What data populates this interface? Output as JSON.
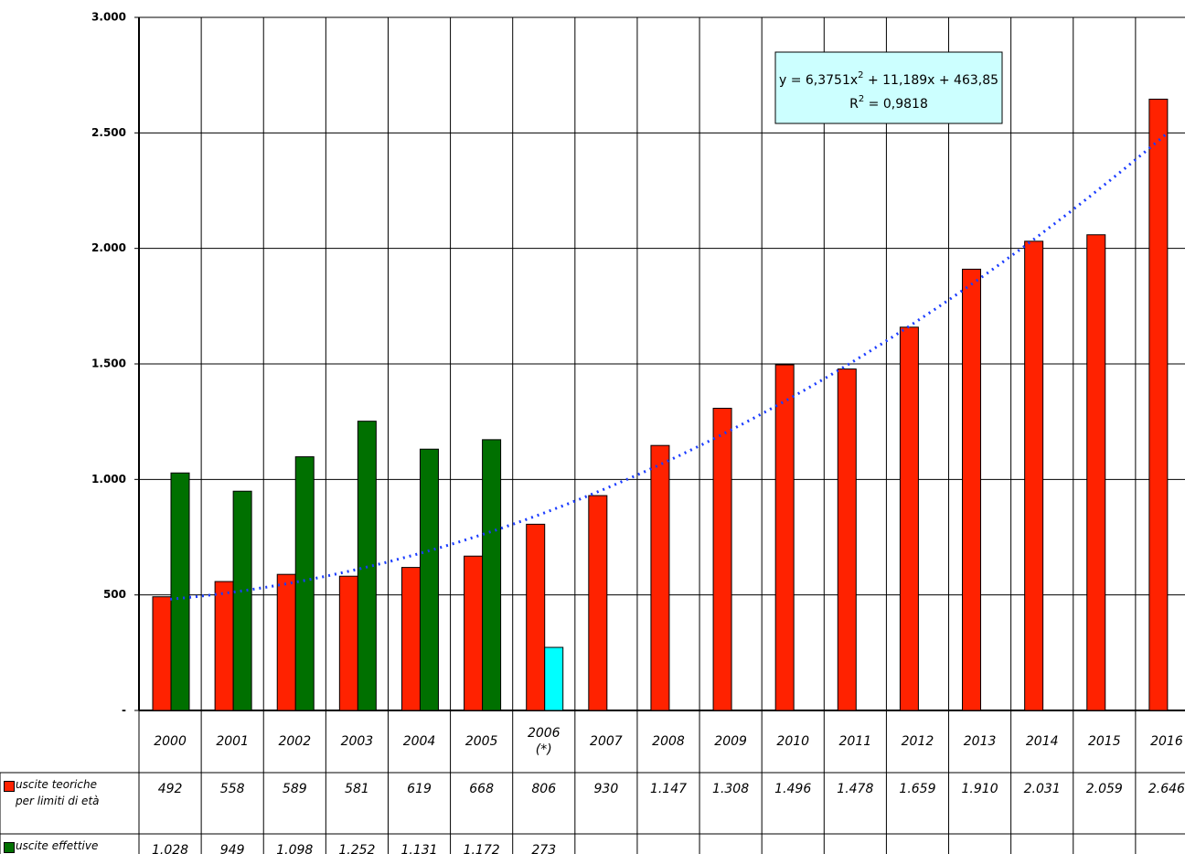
{
  "chart_data": {
    "type": "bar",
    "categories": [
      "2000",
      "2001",
      "2002",
      "2003",
      "2004",
      "2005",
      "2006\n(*)",
      "2007",
      "2008",
      "2009",
      "2010",
      "2011",
      "2012",
      "2013",
      "2014",
      "2015",
      "2016"
    ],
    "series": [
      {
        "name": "uscite teoriche\nper limiti di età",
        "color": "#ff2200",
        "values": [
          492,
          558,
          589,
          581,
          619,
          668,
          806,
          930,
          1147,
          1308,
          1496,
          1478,
          1659,
          1910,
          2031,
          2059,
          2646
        ],
        "value_labels": [
          "492",
          "558",
          "589",
          "581",
          "619",
          "668",
          "806",
          "930",
          "1.147",
          "1.308",
          "1.496",
          "1.478",
          "1.659",
          "1.910",
          "2.031",
          "2.059",
          "2.646"
        ]
      },
      {
        "name": "uscite effettive",
        "color": "#007000",
        "colors": [
          "#007000",
          "#007000",
          "#007000",
          "#007000",
          "#007000",
          "#007000",
          "#00ffff",
          null,
          null,
          null,
          null,
          null,
          null,
          null,
          null,
          null,
          null
        ],
        "values": [
          1028,
          949,
          1098,
          1252,
          1131,
          1172,
          273,
          null,
          null,
          null,
          null,
          null,
          null,
          null,
          null,
          null,
          null
        ],
        "value_labels": [
          "1.028",
          "949",
          "1.098",
          "1.252",
          "1.131",
          "1.172",
          "273",
          null,
          null,
          null,
          null,
          null,
          null,
          null,
          null,
          null,
          null
        ]
      }
    ],
    "trendline": {
      "type": "polynomial",
      "color": "#1a3cff",
      "coefficients": [
        463.85,
        11.189,
        6.3751
      ],
      "equation": [
        "y = 6,3751x",
        "2",
        " + 11,189x + 463,85"
      ],
      "r_squared": [
        "R",
        "2",
        " = 0,9818"
      ]
    },
    "ylim": [
      0,
      3000
    ],
    "yticks": [
      {
        "value": 0,
        "label": "-"
      },
      500,
      {
        "value": 1000,
        "label": "1.000"
      },
      {
        "value": 1500,
        "label": "1.500"
      },
      {
        "value": 2000,
        "label": "2.000"
      },
      {
        "value": 2500,
        "label": "2.500"
      },
      {
        "value": 3000,
        "label": "3.000"
      }
    ],
    "grid": true
  }
}
